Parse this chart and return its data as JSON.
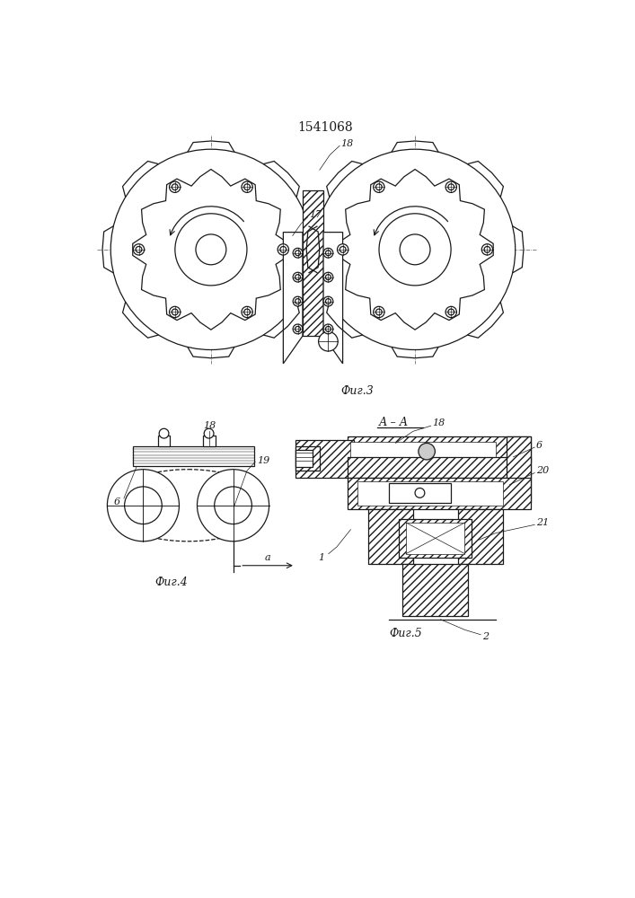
{
  "title": "1541068",
  "fig3_label": "Фиг.3",
  "fig4_label": "Фиг.4",
  "fig5_label": "Фиг.5",
  "aa_label": "А–А",
  "bg_color": "#ffffff",
  "line_color": "#1a1a1a",
  "font_size_title": 10,
  "font_size_label": 8,
  "font_size_fig": 9
}
